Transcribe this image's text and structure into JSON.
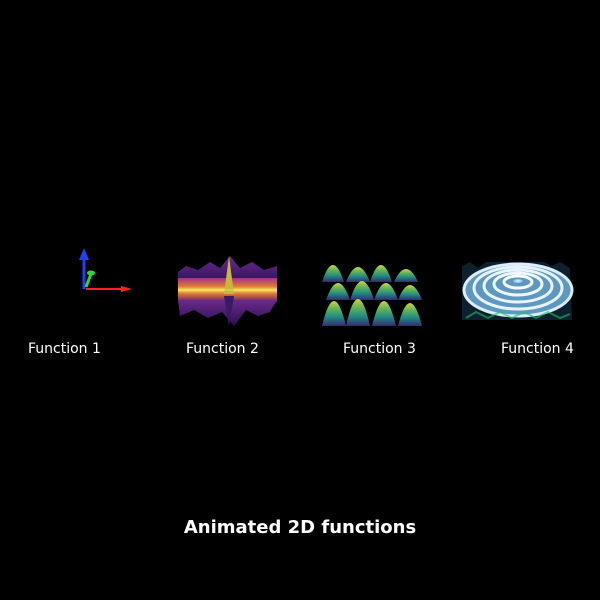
{
  "scene": {
    "background": "#000000",
    "title": "Animated 2D functions",
    "panels": [
      {
        "label": "Function 1",
        "content": "axes-triad",
        "axis_colors": [
          "#ff2020",
          "#20e020",
          "#2040ff"
        ]
      },
      {
        "label": "Function 2",
        "content": "surface",
        "colormap": "plasma"
      },
      {
        "label": "Function 3",
        "content": "surface",
        "colormap": "viridis"
      },
      {
        "label": "Function 4",
        "content": "surface",
        "colormap": "ice-blue"
      }
    ]
  }
}
